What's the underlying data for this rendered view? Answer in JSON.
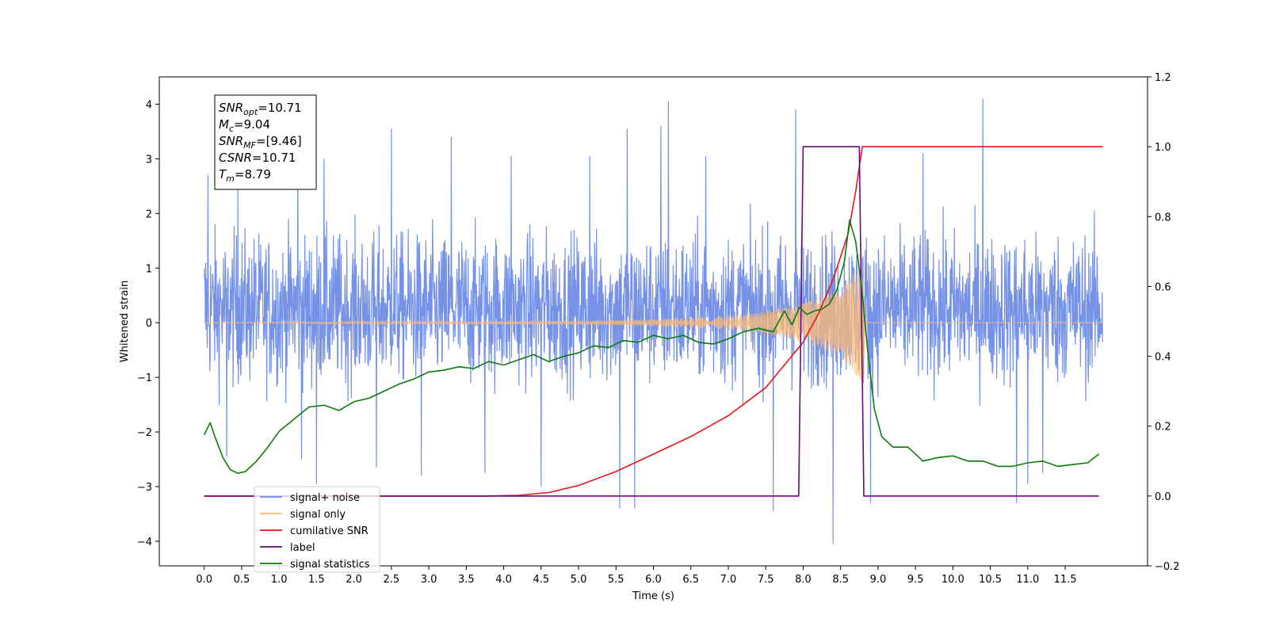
{
  "chart_data": {
    "type": "line",
    "xlabel": "Time (s)",
    "ylabel": "Whitened strain",
    "xlim": [
      -0.6,
      12.6
    ],
    "ylim": [
      -4.45,
      4.5
    ],
    "y2lim": [
      -0.2,
      1.2
    ],
    "grid": false,
    "legend_position": "lower-left",
    "x_ticks": [
      "0.0",
      "0.5",
      "1.0",
      "1.5",
      "2.0",
      "2.5",
      "3.0",
      "3.5",
      "4.0",
      "4.5",
      "5.0",
      "5.5",
      "6.0",
      "6.5",
      "7.0",
      "7.5",
      "8.0",
      "8.5",
      "9.0",
      "9.5",
      "10.0",
      "10.5",
      "11.0",
      "11.5"
    ],
    "y_ticks": [
      "−4",
      "−3",
      "−2",
      "−1",
      "0",
      "1",
      "2",
      "3",
      "4"
    ],
    "y2_ticks": [
      "−0.2",
      "0.0",
      "0.2",
      "0.4",
      "0.6",
      "0.8",
      "1.0",
      "1.2"
    ],
    "annotation_lines": [
      {
        "var": "SNR",
        "sub": "opt",
        "value": "=10.71"
      },
      {
        "var": "M",
        "sub": "c",
        "value": "=9.04"
      },
      {
        "var": "SNR",
        "sub": "MF",
        "value": "=[9.46]"
      },
      {
        "var": "CSNR",
        "sub": "",
        "value": "=10.71"
      },
      {
        "var": "T",
        "sub": "m",
        "value": "=8.79"
      }
    ],
    "series": [
      {
        "name": "signal+ noise",
        "color": "#6e8ce6",
        "axis": "left",
        "style": "noise",
        "x_range": [
          0.0,
          12.0
        ],
        "band": [
          -1.4,
          1.9
        ],
        "spikes_up": [
          [
            0.05,
            2.7
          ],
          [
            0.45,
            2.6
          ],
          [
            1.25,
            3.15
          ],
          [
            1.6,
            3.0
          ],
          [
            2.5,
            3.55
          ],
          [
            2.9,
            3.15
          ],
          [
            3.3,
            3.4
          ],
          [
            4.1,
            3.05
          ],
          [
            5.15,
            3.05
          ],
          [
            5.65,
            3.55
          ],
          [
            6.1,
            3.6
          ],
          [
            6.2,
            4.05
          ],
          [
            6.7,
            3.05
          ],
          [
            7.9,
            3.9
          ],
          [
            8.9,
            3.25
          ],
          [
            9.6,
            3.1
          ],
          [
            10.4,
            4.1
          ],
          [
            10.85,
            3.5
          ],
          [
            11.2,
            3.35
          ]
        ],
        "spikes_down": [
          [
            0.3,
            -2.45
          ],
          [
            1.3,
            -2.5
          ],
          [
            1.5,
            -2.95
          ],
          [
            2.3,
            -2.65
          ],
          [
            2.9,
            -2.8
          ],
          [
            3.75,
            -2.75
          ],
          [
            4.5,
            -3.0
          ],
          [
            5.55,
            -3.4
          ],
          [
            5.75,
            -3.4
          ],
          [
            7.6,
            -3.45
          ],
          [
            8.4,
            -4.05
          ],
          [
            8.9,
            -3.3
          ],
          [
            10.85,
            -3.3
          ],
          [
            11.0,
            -2.95
          ],
          [
            11.2,
            -2.75
          ]
        ]
      },
      {
        "name": "signal only",
        "color": "#f5b87d",
        "axis": "left",
        "style": "chirp",
        "x": [
          0.0,
          5.0,
          6.0,
          7.0,
          7.5,
          8.0,
          8.3,
          8.5,
          8.7,
          8.79,
          8.85,
          12.0
        ],
        "amplitude": [
          0.0,
          0.03,
          0.06,
          0.12,
          0.2,
          0.35,
          0.5,
          0.65,
          0.95,
          1.1,
          0.0,
          0.0
        ]
      },
      {
        "name": "cumilative SNR",
        "color": "#e8141a",
        "axis": "right",
        "x": [
          0.0,
          3.8,
          4.2,
          4.6,
          5.0,
          5.5,
          6.0,
          6.5,
          7.0,
          7.5,
          8.0,
          8.2,
          8.4,
          8.6,
          8.7,
          8.79,
          8.8,
          12.0
        ],
        "values": [
          0.0,
          0.0,
          0.002,
          0.01,
          0.03,
          0.07,
          0.12,
          0.17,
          0.23,
          0.31,
          0.44,
          0.52,
          0.62,
          0.75,
          0.87,
          1.0,
          1.0,
          1.0
        ]
      },
      {
        "name": "label",
        "color": "#6a0a78",
        "axis": "right",
        "x": [
          0.0,
          7.94,
          8.0,
          8.75,
          8.81,
          11.95
        ],
        "values": [
          0.0,
          0.0,
          1.0,
          1.0,
          0.0,
          0.0
        ]
      },
      {
        "name": "signal statistics",
        "color": "#0c7a0c",
        "axis": "right",
        "x": [
          0.0,
          0.08,
          0.15,
          0.25,
          0.35,
          0.45,
          0.55,
          0.7,
          0.85,
          1.0,
          1.2,
          1.4,
          1.6,
          1.8,
          2.0,
          2.2,
          2.4,
          2.6,
          2.8,
          3.0,
          3.2,
          3.4,
          3.6,
          3.8,
          4.0,
          4.2,
          4.4,
          4.6,
          4.8,
          5.0,
          5.2,
          5.4,
          5.6,
          5.8,
          6.0,
          6.2,
          6.4,
          6.6,
          6.8,
          7.0,
          7.2,
          7.4,
          7.6,
          7.75,
          7.85,
          7.95,
          8.05,
          8.15,
          8.25,
          8.35,
          8.45,
          8.55,
          8.62,
          8.7,
          8.78,
          8.86,
          8.95,
          9.05,
          9.2,
          9.4,
          9.6,
          9.8,
          10.0,
          10.2,
          10.4,
          10.6,
          10.8,
          11.0,
          11.2,
          11.4,
          11.6,
          11.8,
          11.95
        ],
        "values": [
          0.175,
          0.21,
          0.165,
          0.11,
          0.075,
          0.065,
          0.07,
          0.1,
          0.14,
          0.185,
          0.22,
          0.255,
          0.26,
          0.245,
          0.27,
          0.28,
          0.3,
          0.32,
          0.335,
          0.355,
          0.36,
          0.37,
          0.365,
          0.385,
          0.375,
          0.39,
          0.405,
          0.385,
          0.4,
          0.41,
          0.43,
          0.425,
          0.445,
          0.44,
          0.46,
          0.45,
          0.46,
          0.44,
          0.435,
          0.45,
          0.47,
          0.48,
          0.47,
          0.53,
          0.49,
          0.54,
          0.52,
          0.53,
          0.535,
          0.55,
          0.59,
          0.67,
          0.79,
          0.73,
          0.6,
          0.42,
          0.25,
          0.17,
          0.14,
          0.14,
          0.1,
          0.11,
          0.115,
          0.1,
          0.1,
          0.085,
          0.085,
          0.095,
          0.1,
          0.085,
          0.09,
          0.095,
          0.12
        ]
      }
    ]
  }
}
